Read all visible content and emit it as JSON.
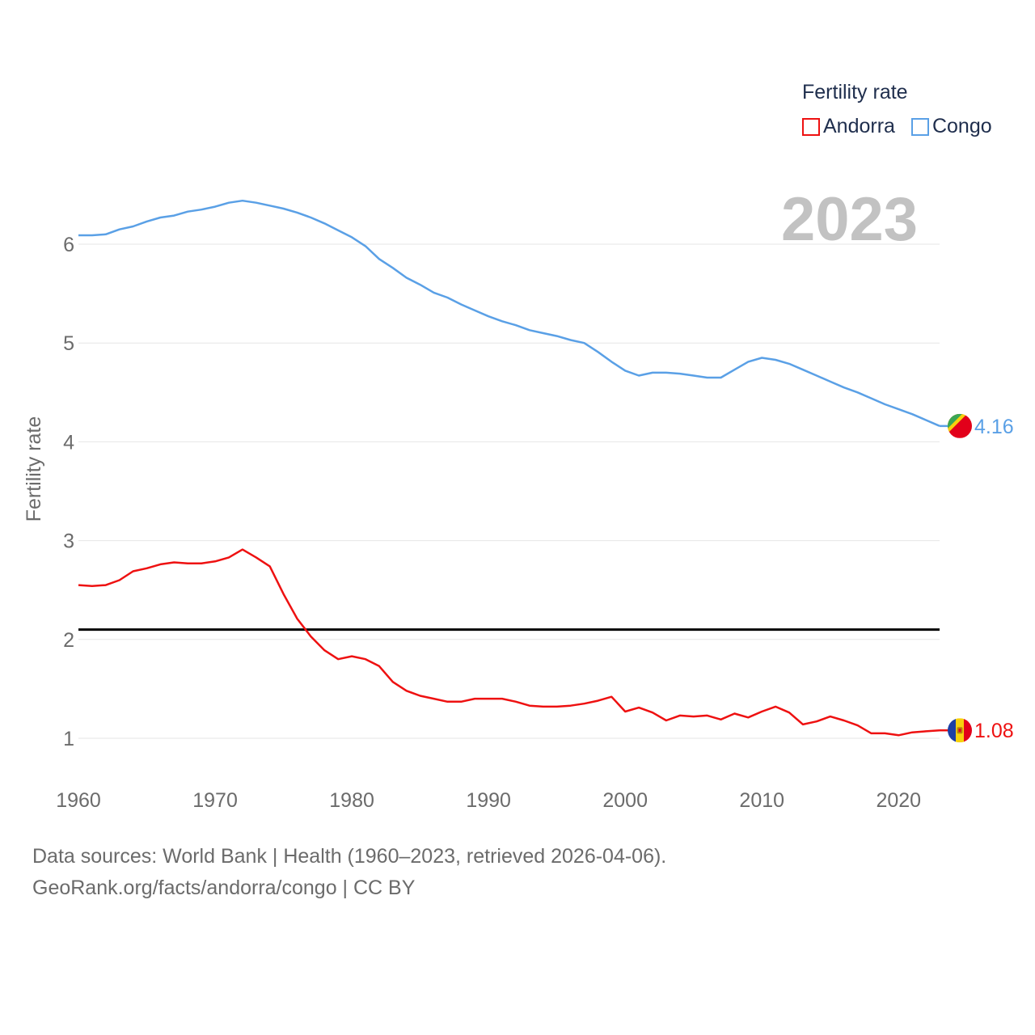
{
  "chart_data": {
    "type": "line",
    "ylabel": "Fertility rate",
    "xlabel": "",
    "xlim": [
      1960,
      2023
    ],
    "ylim": [
      0.5,
      6.8
    ],
    "yticks": [
      1,
      2,
      3,
      4,
      5,
      6
    ],
    "xticks": [
      1960,
      1970,
      1980,
      1990,
      2000,
      2010,
      2020
    ],
    "reference_line": {
      "y": 2.1,
      "color": "#000000"
    },
    "year_display": "2023",
    "legend": {
      "title": "Fertility rate",
      "position": "top-right"
    },
    "series": [
      {
        "name": "Andorra",
        "color": "#ee1111",
        "end_label": "1.08",
        "flag": "andorra-flag",
        "x": [
          1960,
          1961,
          1962,
          1963,
          1964,
          1965,
          1966,
          1967,
          1968,
          1969,
          1970,
          1971,
          1972,
          1973,
          1974,
          1975,
          1976,
          1977,
          1978,
          1979,
          1980,
          1981,
          1982,
          1983,
          1984,
          1985,
          1986,
          1987,
          1988,
          1989,
          1990,
          1991,
          1992,
          1993,
          1994,
          1995,
          1996,
          1997,
          1998,
          1999,
          2000,
          2001,
          2002,
          2003,
          2004,
          2005,
          2006,
          2007,
          2008,
          2009,
          2010,
          2011,
          2012,
          2013,
          2014,
          2015,
          2016,
          2017,
          2018,
          2019,
          2020,
          2021,
          2022,
          2023
        ],
        "values": [
          2.55,
          2.54,
          2.55,
          2.6,
          2.69,
          2.72,
          2.76,
          2.78,
          2.77,
          2.77,
          2.79,
          2.83,
          2.91,
          2.83,
          2.74,
          2.46,
          2.21,
          2.03,
          1.89,
          1.8,
          1.83,
          1.8,
          1.73,
          1.57,
          1.48,
          1.43,
          1.4,
          1.37,
          1.37,
          1.4,
          1.4,
          1.4,
          1.37,
          1.33,
          1.32,
          1.32,
          1.33,
          1.35,
          1.38,
          1.42,
          1.27,
          1.31,
          1.26,
          1.18,
          1.23,
          1.22,
          1.23,
          1.19,
          1.25,
          1.21,
          1.27,
          1.32,
          1.26,
          1.14,
          1.17,
          1.22,
          1.18,
          1.13,
          1.05,
          1.05,
          1.03,
          1.06,
          1.07,
          1.08
        ]
      },
      {
        "name": "Congo",
        "color": "#5aa0e6",
        "end_label": "4.16",
        "flag": "congo-flag",
        "x": [
          1960,
          1961,
          1962,
          1963,
          1964,
          1965,
          1966,
          1967,
          1968,
          1969,
          1970,
          1971,
          1972,
          1973,
          1974,
          1975,
          1976,
          1977,
          1978,
          1979,
          1980,
          1981,
          1982,
          1983,
          1984,
          1985,
          1986,
          1987,
          1988,
          1989,
          1990,
          1991,
          1992,
          1993,
          1994,
          1995,
          1996,
          1997,
          1998,
          1999,
          2000,
          2001,
          2002,
          2003,
          2004,
          2005,
          2006,
          2007,
          2008,
          2009,
          2010,
          2011,
          2012,
          2013,
          2014,
          2015,
          2016,
          2017,
          2018,
          2019,
          2020,
          2021,
          2022,
          2023
        ],
        "values": [
          6.09,
          6.09,
          6.1,
          6.15,
          6.18,
          6.23,
          6.27,
          6.29,
          6.33,
          6.35,
          6.38,
          6.42,
          6.44,
          6.42,
          6.39,
          6.36,
          6.32,
          6.27,
          6.21,
          6.14,
          6.07,
          5.98,
          5.85,
          5.76,
          5.66,
          5.59,
          5.51,
          5.46,
          5.39,
          5.33,
          5.27,
          5.22,
          5.18,
          5.13,
          5.1,
          5.07,
          5.03,
          5.0,
          4.91,
          4.81,
          4.72,
          4.67,
          4.7,
          4.7,
          4.69,
          4.67,
          4.65,
          4.65,
          4.73,
          4.81,
          4.85,
          4.83,
          4.79,
          4.73,
          4.67,
          4.61,
          4.55,
          4.5,
          4.44,
          4.38,
          4.33,
          4.28,
          4.22,
          4.16
        ]
      }
    ]
  },
  "footer": {
    "line1": "Data sources: World Bank | Health (1960–2023, retrieved 2026-04-06).",
    "line2": "GeoRank.org/facts/andorra/congo | CC BY"
  }
}
